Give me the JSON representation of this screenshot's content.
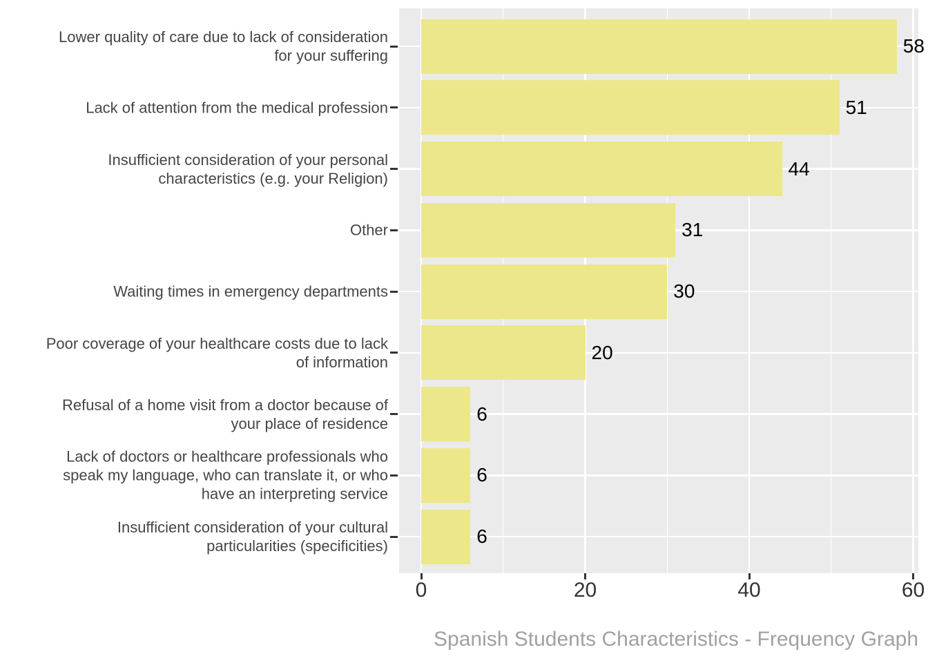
{
  "chart_data": {
    "type": "bar",
    "orientation": "horizontal",
    "caption": "Spanish Students Characteristics - Frequency Graph",
    "categories": [
      "Lower quality of care due to lack of consideration for your suffering",
      "Lack of attention from the medical profession",
      "Insufficient consideration of your personal characteristics (e.g. your Religion)",
      "Other",
      "Waiting times in emergency departments",
      "Poor coverage of your healthcare costs due to lack of information",
      "Refusal of a home visit from a doctor because of your place of residence",
      "Lack of doctors or healthcare professionals who speak my language, who can translate it, or who have an interpreting service",
      "Insufficient consideration of your cultural particularities (specificities)"
    ],
    "category_lines": [
      [
        "Lower quality of care due to lack of consideration",
        "for your suffering"
      ],
      [
        "Lack of attention from the medical profession"
      ],
      [
        "Insufficient consideration of your personal",
        "characteristics (e.g. your Religion)"
      ],
      [
        "Other"
      ],
      [
        "Waiting times in emergency departments"
      ],
      [
        "Poor coverage of your healthcare costs due to lack",
        "of information"
      ],
      [
        "Refusal of a home visit from a doctor because of",
        "your place of residence"
      ],
      [
        "Lack of doctors or healthcare professionals who",
        "speak my language, who can translate it, or who",
        "have an interpreting service"
      ],
      [
        "Insufficient consideration of your cultural",
        "particularities (specificities)"
      ]
    ],
    "values": [
      58,
      51,
      44,
      31,
      30,
      20,
      6,
      6,
      6
    ],
    "xlabel": "",
    "ylabel": "",
    "x_axis": {
      "major_ticks": [
        0,
        20,
        40,
        60
      ],
      "minor_gridlines": [
        10,
        30,
        50
      ],
      "range": [
        -2.9,
        60.9
      ]
    },
    "legend": "none",
    "grid": {
      "vertical_major": true,
      "vertical_minor": true,
      "horizontal_major": true
    },
    "colors": {
      "bar_fill": "#ECE78B",
      "panel_background": "#EBEBEB",
      "gridline": "#FFFFFF",
      "axis_text": "#333333",
      "category_text": "#454545",
      "value_text": "#000000",
      "caption_text": "#A1A1A1",
      "tick_mark": "#333333",
      "background": "#FFFFFF"
    }
  }
}
